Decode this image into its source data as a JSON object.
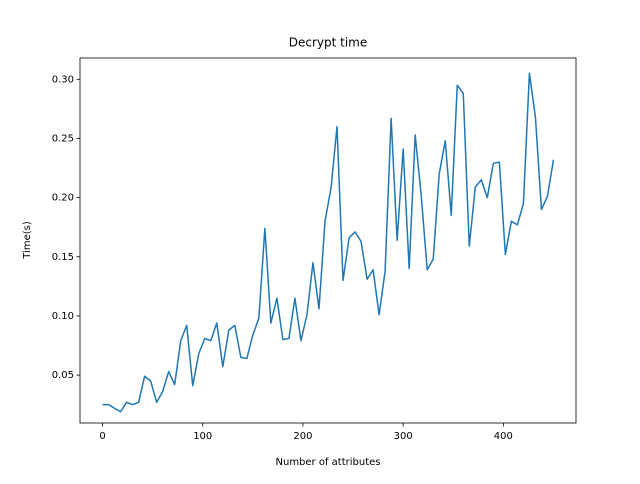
{
  "chart_data": {
    "type": "line",
    "title": "Decrypt time",
    "xlabel": "Number of attributes",
    "ylabel": "Time(s)",
    "x": [
      0,
      6,
      12,
      18,
      24,
      30,
      36,
      42,
      48,
      54,
      60,
      66,
      72,
      78,
      84,
      90,
      96,
      102,
      108,
      114,
      120,
      126,
      132,
      138,
      144,
      150,
      156,
      162,
      168,
      174,
      180,
      186,
      192,
      198,
      204,
      210,
      216,
      222,
      228,
      234,
      240,
      246,
      252,
      258,
      264,
      270,
      276,
      282,
      288,
      294,
      300,
      306,
      312,
      318,
      324,
      330,
      336,
      342,
      348,
      354,
      360,
      366,
      372,
      378,
      384,
      390,
      396,
      402,
      408,
      414,
      420,
      426,
      432,
      438,
      444,
      450
    ],
    "series": [
      {
        "name": "Decrypt time",
        "color": "#1f77b4",
        "values": [
          0.025,
          0.025,
          0.022,
          0.019,
          0.027,
          0.025,
          0.027,
          0.049,
          0.045,
          0.027,
          0.036,
          0.053,
          0.042,
          0.079,
          0.092,
          0.041,
          0.068,
          0.081,
          0.079,
          0.094,
          0.057,
          0.088,
          0.092,
          0.065,
          0.064,
          0.084,
          0.098,
          0.174,
          0.094,
          0.115,
          0.08,
          0.081,
          0.115,
          0.079,
          0.101,
          0.145,
          0.106,
          0.18,
          0.208,
          0.26,
          0.13,
          0.166,
          0.171,
          0.163,
          0.131,
          0.139,
          0.101,
          0.138,
          0.267,
          0.164,
          0.241,
          0.14,
          0.253,
          0.202,
          0.139,
          0.148,
          0.22,
          0.248,
          0.185,
          0.295,
          0.288,
          0.159,
          0.209,
          0.215,
          0.2,
          0.229,
          0.23,
          0.152,
          0.18,
          0.177,
          0.195,
          0.305,
          0.268,
          0.19,
          0.201,
          0.232
        ]
      }
    ],
    "xlim": [
      -22.5,
      472.5
    ],
    "xticks": [
      0,
      100,
      200,
      300,
      400
    ],
    "ylim": [
      0.0095,
      0.318
    ],
    "yticks": [
      {
        "value": 0.05,
        "label": "0.05"
      },
      {
        "value": 0.1,
        "label": "0.10"
      },
      {
        "value": 0.15,
        "label": "0.15"
      },
      {
        "value": 0.2,
        "label": "0.20"
      },
      {
        "value": 0.25,
        "label": "0.25"
      },
      {
        "value": 0.3,
        "label": "0.30"
      }
    ],
    "grid": false
  }
}
